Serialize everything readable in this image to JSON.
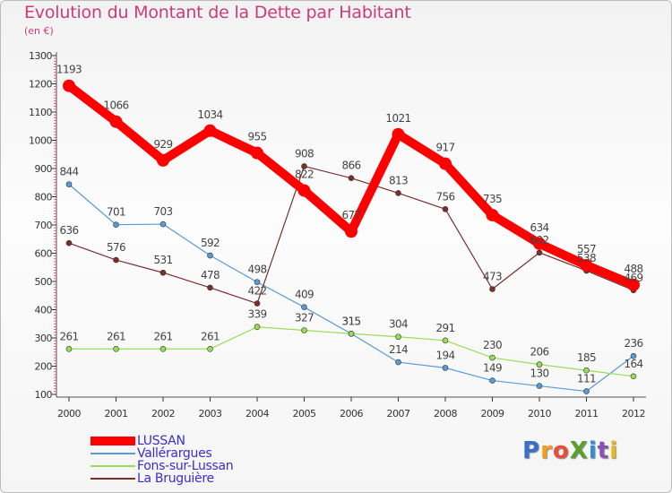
{
  "title": "Evolution du Montant de la Dette par Habitant",
  "subtitle": "(en €)",
  "brand": {
    "text": "ProXiti",
    "letter_colors": [
      "#3a6fc9",
      "#f0a020",
      "#e84e3c",
      "#5aa02c",
      "#2f8fd6",
      "#8c4fb5",
      "#e8b820"
    ]
  },
  "chart_data": {
    "type": "line",
    "x": [
      "2000",
      "2001",
      "2002",
      "2003",
      "2004",
      "2005",
      "2006",
      "2007",
      "2008",
      "2009",
      "2010",
      "2011",
      "2012"
    ],
    "ylim": [
      100,
      1300
    ],
    "yticks": [
      100,
      200,
      300,
      400,
      500,
      600,
      700,
      800,
      900,
      1000,
      1100,
      1200,
      1300
    ],
    "grid": false,
    "legend_position": "bottom-left",
    "series": [
      {
        "name": "LUSSAN",
        "color": "#ff0000",
        "values": [
          1193,
          1066,
          929,
          1034,
          955,
          822,
          677,
          1021,
          917,
          735,
          634,
          557,
          488
        ]
      },
      {
        "name": "Vallérargues",
        "color": "#5b9bd5",
        "values": [
          844,
          701,
          703,
          592,
          498,
          409,
          315,
          214,
          194,
          149,
          130,
          111,
          236
        ]
      },
      {
        "name": "Fons-sur-Lussan",
        "color": "#99dd55",
        "values": [
          261,
          261,
          261,
          261,
          339,
          327,
          315,
          304,
          291,
          230,
          206,
          185,
          164
        ]
      },
      {
        "name": "La Bruguière",
        "color": "#7a2e2e",
        "values": [
          636,
          576,
          531,
          478,
          422,
          908,
          866,
          813,
          756,
          473,
          602,
          538,
          469
        ]
      }
    ]
  }
}
